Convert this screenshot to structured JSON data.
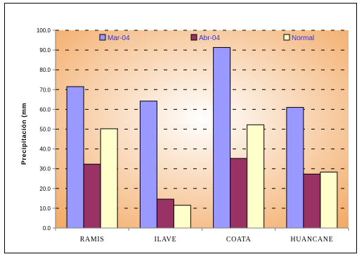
{
  "chart_data": {
    "type": "bar",
    "categories": [
      "RAMIS",
      "ILAVE",
      "COATA",
      "HUANCANE"
    ],
    "series": [
      {
        "name": "Mar-04",
        "color": "#9999ff",
        "values": [
          71.5,
          64.2,
          91.3,
          61.0
        ]
      },
      {
        "name": "Abr-04",
        "color": "#993366",
        "values": [
          32.3,
          14.6,
          35.2,
          27.3
        ]
      },
      {
        "name": "Normal",
        "color": "#ffffcc",
        "values": [
          50.2,
          11.5,
          52.2,
          28.3
        ]
      }
    ],
    "ylabel": "Precipitación (mm",
    "ylim": [
      0,
      100
    ],
    "yticks": [
      "0.0",
      "10.0",
      "20.0",
      "30.0",
      "40.0",
      "50.0",
      "60.0",
      "70.0",
      "80.0",
      "90.0",
      "100.0"
    ],
    "grid": true,
    "legend": "top",
    "legend_text_color": "#3333cc",
    "background_colors": [
      "#ffffff",
      "#f2a862"
    ]
  }
}
